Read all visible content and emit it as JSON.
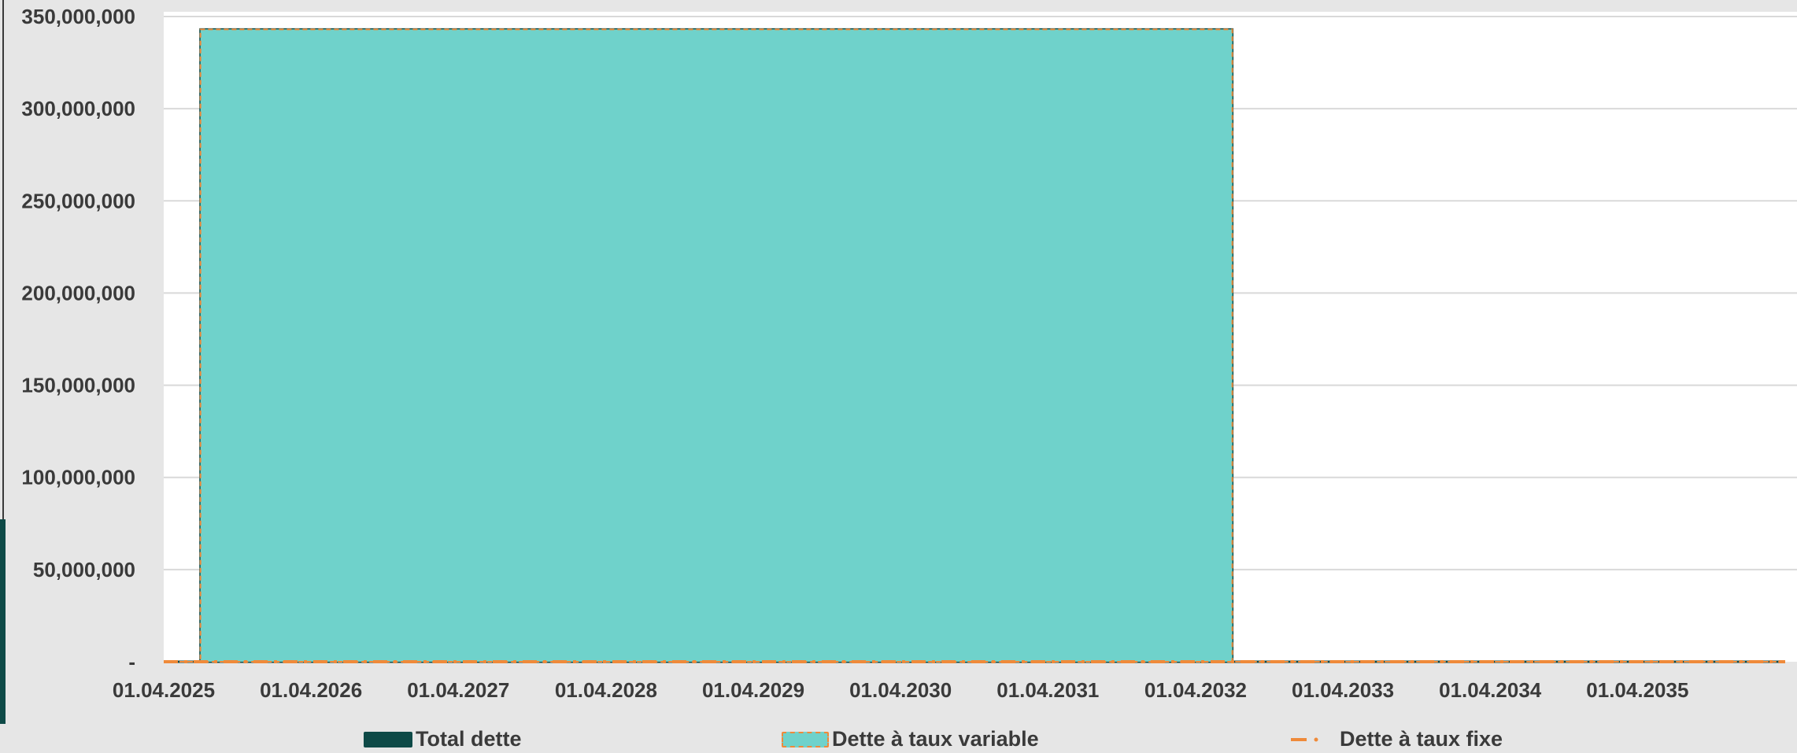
{
  "chart_data": {
    "type": "area",
    "title": "",
    "xlabel": "",
    "ylabel": "",
    "ylim": [
      0,
      350000000
    ],
    "y_ticks": [
      0,
      50000000,
      100000000,
      150000000,
      200000000,
      250000000,
      300000000,
      350000000
    ],
    "y_tick_labels": [
      "-",
      "50,000,000",
      "100,000,000",
      "150,000,000",
      "200,000,000",
      "250,000,000",
      "300,000,000",
      "350,000,000"
    ],
    "x_range": [
      "2025-04-01",
      "2036-04-01"
    ],
    "x_ticks": [
      "2025-04-01",
      "2026-04-01",
      "2027-04-01",
      "2028-04-01",
      "2029-04-01",
      "2030-04-01",
      "2031-04-01",
      "2032-04-01",
      "2033-04-01",
      "2034-04-01",
      "2035-04-01"
    ],
    "x_tick_labels": [
      "01.04.2025",
      "01.04.2026",
      "01.04.2027",
      "01.04.2028",
      "01.04.2029",
      "01.04.2030",
      "01.04.2031",
      "01.04.2032",
      "01.04.2033",
      "01.04.2034",
      "01.04.2035"
    ],
    "grid": true,
    "legend_position": "bottom",
    "series": [
      {
        "name": "Total dette",
        "color": "#0e4a47",
        "points": [
          {
            "x": "2025-04-01",
            "y": 0
          },
          {
            "x": "2025-07-01",
            "y": 0
          },
          {
            "x": "2025-07-01",
            "y": 343000000
          },
          {
            "x": "2032-07-01",
            "y": 343000000
          },
          {
            "x": "2032-07-01",
            "y": 0
          },
          {
            "x": "2036-04-01",
            "y": 0
          }
        ]
      },
      {
        "name": "Dette à taux variable",
        "color": "#6fd2cb",
        "stroke": "#ef8a3a",
        "points": [
          {
            "x": "2025-04-01",
            "y": 0
          },
          {
            "x": "2025-07-01",
            "y": 0
          },
          {
            "x": "2025-07-01",
            "y": 343000000
          },
          {
            "x": "2032-07-01",
            "y": 343000000
          },
          {
            "x": "2032-07-01",
            "y": 0
          },
          {
            "x": "2036-04-01",
            "y": 0
          }
        ]
      },
      {
        "name": "Dette à taux fixe",
        "color": "#ef8a3a",
        "points": [
          {
            "x": "2025-04-01",
            "y": 0
          },
          {
            "x": "2036-04-01",
            "y": 0
          }
        ]
      }
    ]
  },
  "legend": {
    "total_label": "Total dette",
    "variable_label": "Dette à taux variable",
    "fixed_label": "Dette à taux fixe"
  }
}
